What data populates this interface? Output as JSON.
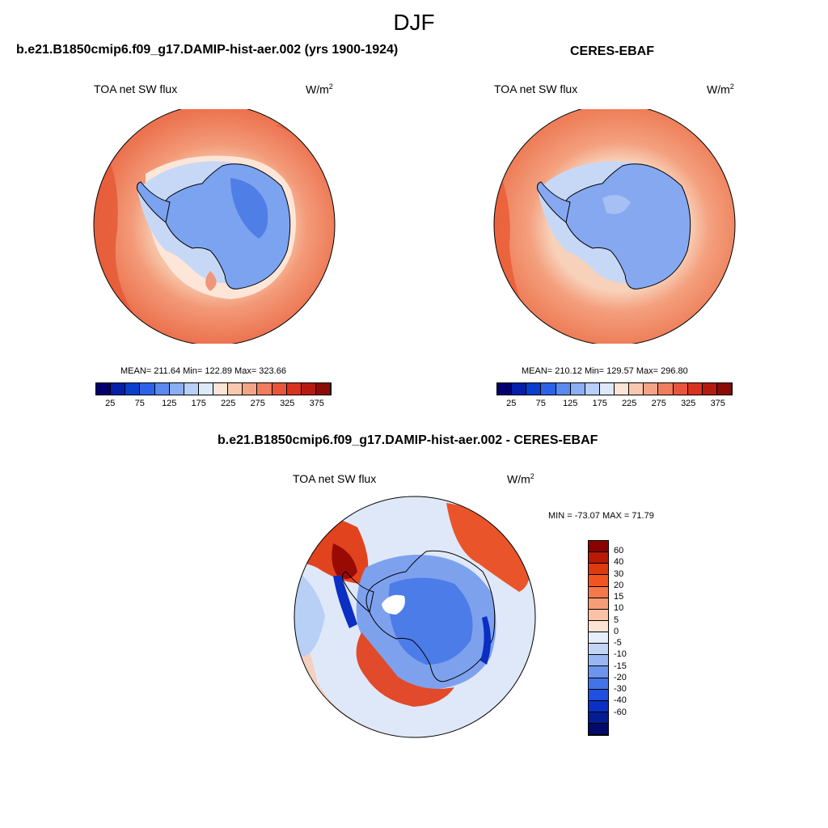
{
  "season": "DJF",
  "panels": [
    {
      "title": "b.e21.B1850cmip6.f09_g17.DAMIP-hist-aer.002 (yrs 1900-1924)",
      "variable": "TOA net SW flux",
      "units_base": "W/m",
      "units_exp": "2",
      "stats": "MEAN= 211.64  Min= 122.89  Max= 323.66"
    },
    {
      "title": "CERES-EBAF",
      "variable": "TOA net SW flux",
      "units_base": "W/m",
      "units_exp": "2",
      "stats": "MEAN= 210.12  Min= 129.57  Max= 296.80"
    },
    {
      "title": "b.e21.B1850cmip6.f09_g17.DAMIP-hist-aer.002 - CERES-EBAF",
      "variable": "TOA net SW flux",
      "units_base": "W/m",
      "units_exp": "2",
      "stats": "MIN = -73.07 MAX =  71.79"
    }
  ],
  "abs_colorbar": {
    "colors": [
      "#03006e",
      "#0520a8",
      "#0a3ecc",
      "#2b62e8",
      "#5a8af0",
      "#8aaff5",
      "#b8cff8",
      "#dde9f9",
      "#fce4d6",
      "#f8c9b0",
      "#f4a486",
      "#ef7d5e",
      "#e9553a",
      "#d9321f",
      "#b61b12",
      "#8b0b07"
    ],
    "labels": [
      "25",
      "75",
      "125",
      "175",
      "225",
      "275",
      "325",
      "375"
    ]
  },
  "diff_colorbar": {
    "colors": [
      "#8b0000",
      "#b81a05",
      "#dc3a10",
      "#f2541f",
      "#f4784a",
      "#f89c78",
      "#fbc2a7",
      "#fde3d3",
      "#e6eefb",
      "#c2d5f6",
      "#98b6f1",
      "#6d94ec",
      "#4473e8",
      "#2050e0",
      "#0a30c4",
      "#031e92",
      "#020a6a"
    ],
    "labels": [
      "60",
      "40",
      "30",
      "20",
      "15",
      "10",
      "5",
      "0",
      "-5",
      "-10",
      "-15",
      "-20",
      "-30",
      "-40",
      "-60"
    ]
  }
}
